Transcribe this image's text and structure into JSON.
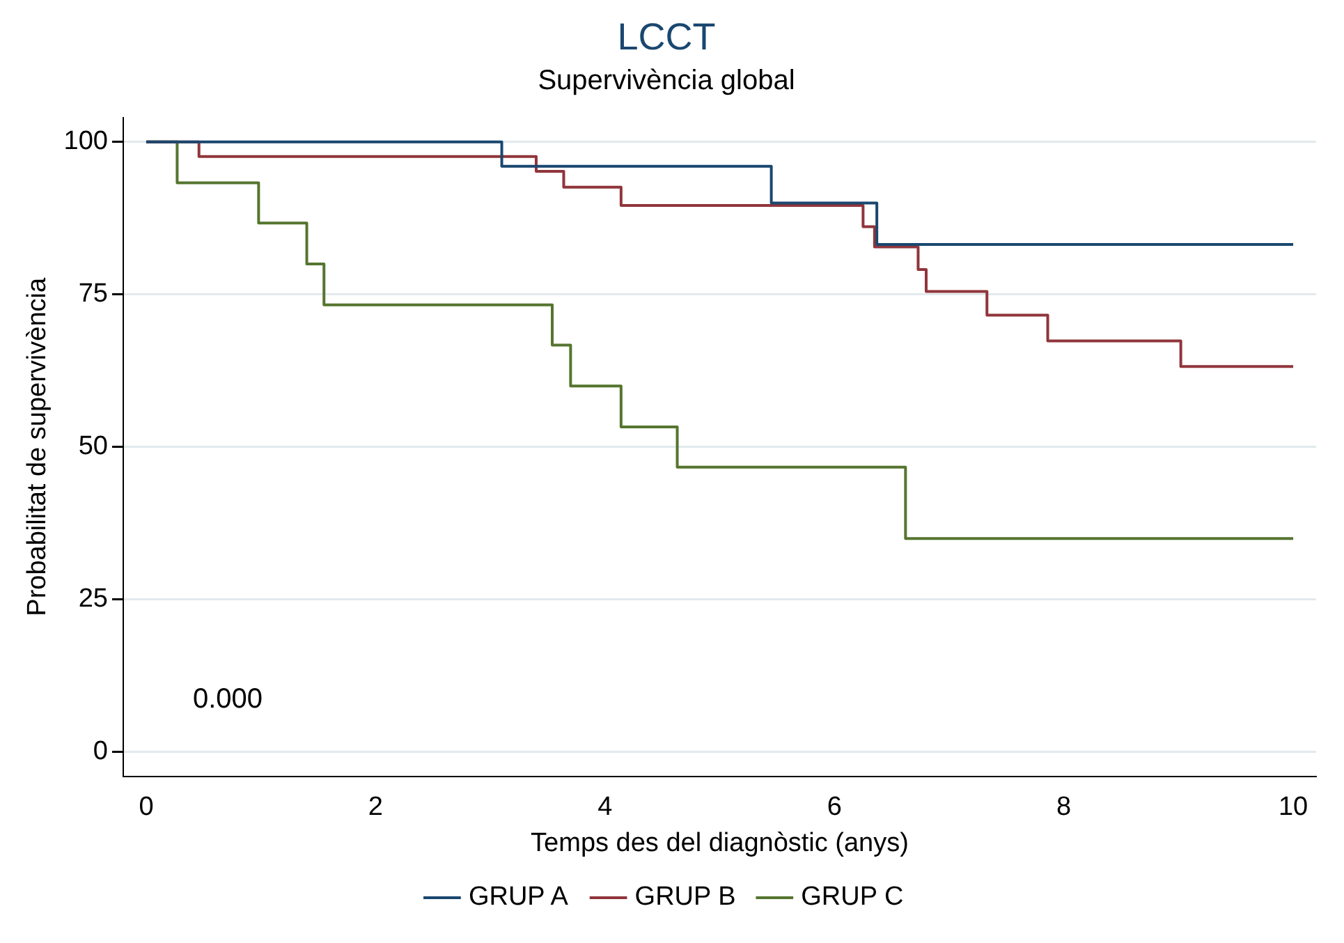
{
  "chart_data": {
    "type": "step",
    "title": "LCCT",
    "subtitle": "Supervivència global",
    "xlabel": "Temps des del diagnòstic (anys)",
    "ylabel": "Probabilitat de supervivència",
    "xlim": [
      -0.2,
      10.2
    ],
    "xticks": [
      0,
      2,
      4,
      6,
      8,
      10
    ],
    "ylim": [
      -4,
      104
    ],
    "yticks": [
      0,
      25,
      50,
      75,
      100
    ],
    "grid": "y",
    "legend": "bottom",
    "marker": "none",
    "line_style": "solid",
    "annotations": [
      "0.000"
    ],
    "series": [
      {
        "name": "GRUP A",
        "color": "#1a476f",
        "x": [
          0,
          3.1,
          5.45,
          6.37,
          10
        ],
        "values": [
          100,
          96,
          90,
          83.2,
          83.2
        ]
      },
      {
        "name": "GRUP B",
        "color": "#90353b",
        "x": [
          0,
          0.46,
          3.4,
          3.64,
          4.14,
          6.25,
          6.35,
          6.73,
          6.8,
          7.33,
          7.86,
          9.02,
          10
        ],
        "values": [
          100,
          97.6,
          95.2,
          92.6,
          89.6,
          86.1,
          82.8,
          79.1,
          75.5,
          71.6,
          67.4,
          63.2,
          63.2
        ]
      },
      {
        "name": "GRUP C",
        "color": "#55752f",
        "x": [
          0,
          0.27,
          0.98,
          1.4,
          1.55,
          3.54,
          3.7,
          4.14,
          4.63,
          6.62,
          10
        ],
        "values": [
          100,
          93.3,
          86.7,
          80,
          73.3,
          66.7,
          60,
          53.3,
          46.7,
          35,
          35
        ]
      }
    ]
  }
}
